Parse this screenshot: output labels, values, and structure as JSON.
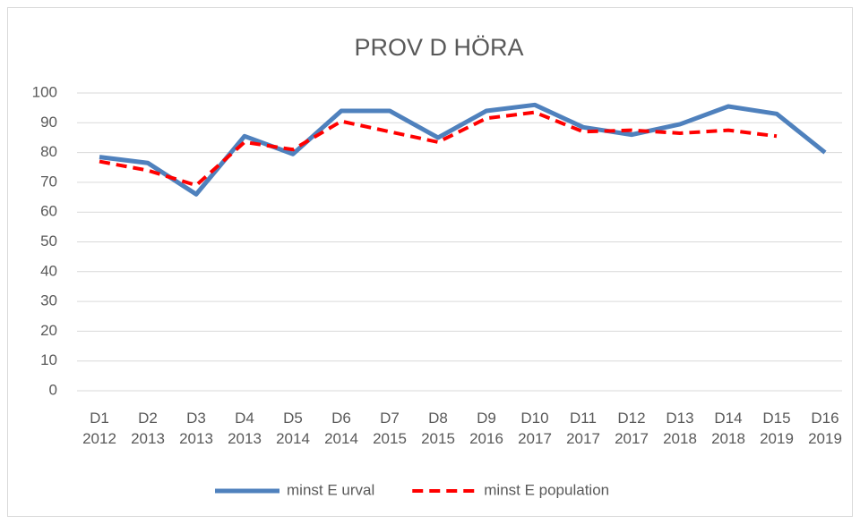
{
  "chart_data": {
    "type": "line",
    "title": "PROV D HÖRA",
    "categories": [
      "D1 2012",
      "D2 2013",
      "D3 2013",
      "D4 2013",
      "D5 2014",
      "D6 2014",
      "D7 2015",
      "D8 2015",
      "D9 2016",
      "D10 2017",
      "D11 2017",
      "D12 2017",
      "D13 2018",
      "D14 2018",
      "D15 2019",
      "D16 2019"
    ],
    "series": [
      {
        "name": "minst E urval",
        "color": "#4f81bd",
        "dashed": false,
        "values": [
          78.5,
          76.5,
          66,
          85.5,
          79.5,
          94,
          94,
          85,
          94,
          96,
          88.5,
          86,
          89.5,
          95.5,
          93,
          80
        ]
      },
      {
        "name": "minst E population",
        "color": "#ff0000",
        "dashed": true,
        "values": [
          77,
          74,
          69,
          83.5,
          81,
          90.5,
          87,
          83.5,
          91.5,
          93.5,
          87,
          87.5,
          86.5,
          87.5,
          85.5,
          null
        ]
      }
    ],
    "ylim": [
      0,
      100
    ],
    "yticks": [
      0,
      10,
      20,
      30,
      40,
      50,
      60,
      70,
      80,
      90,
      100
    ],
    "grid": true,
    "legend": "bottom"
  }
}
